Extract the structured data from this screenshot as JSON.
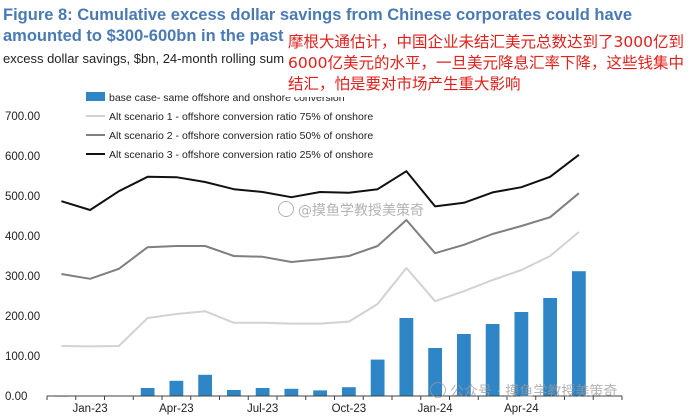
{
  "header": {
    "title": "Figure 8: Cumulative excess dollar savings from Chinese corporates could have amounted to $300-600bn in the past two years",
    "subtitle": "excess dollar savings, $bn, 24-month rolling sum"
  },
  "annotation": {
    "text": "摩根大通估计，中国企业未结汇美元总数达到了3000亿到6000亿美元的水平，一旦美元降息汇率下降，这些钱集中结汇，怕是要对市场产生重大影响"
  },
  "watermarks": {
    "top": "@摸鱼学教授美策奇",
    "bottom": "公众号 · 摸鱼学教授美策奇"
  },
  "colors": {
    "bar": "#2f86c6",
    "alt1": "#d2d2d2",
    "alt2": "#7f7f7f",
    "alt3": "#111111",
    "axis": "#404040",
    "title": "#4a7ab5",
    "annotation": "#e0201b"
  },
  "chart_data": {
    "type": "bar",
    "title": "Figure 8: Cumulative excess dollar savings from Chinese corporates could have amounted to $300-600bn in the past two years",
    "subtitle": "excess dollar savings, $bn, 24-month rolling sum",
    "ylim": [
      0,
      700
    ],
    "yticks": [
      "0.00",
      "100.00",
      "200.00",
      "300.00",
      "400.00",
      "500.00",
      "600.00",
      "700.00"
    ],
    "yticks_values": [
      0,
      100,
      200,
      300,
      400,
      500,
      600,
      700
    ],
    "xtick_labels": [
      {
        "index": 1,
        "label": "Jan-23"
      },
      {
        "index": 4,
        "label": "Apr-23"
      },
      {
        "index": 7,
        "label": "Jul-23"
      },
      {
        "index": 10,
        "label": "Oct-23"
      },
      {
        "index": 13,
        "label": "Jan-24"
      },
      {
        "index": 16,
        "label": "Apr-24"
      }
    ],
    "categories": [
      "Dec-22",
      "Jan-23",
      "Feb-23",
      "Mar-23",
      "Apr-23",
      "May-23",
      "Jun-23",
      "Jul-23",
      "Aug-23",
      "Sep-23",
      "Oct-23",
      "Nov-23",
      "Dec-23",
      "Jan-24",
      "Feb-24",
      "Mar-24",
      "Apr-24",
      "May-24",
      "Jun-24",
      "Jul-24"
    ],
    "legend_position": "top-left",
    "grid": false,
    "series": [
      {
        "name": "base case- same offshore and onshore conversion",
        "kind": "bar",
        "color": "#2f86c6",
        "values": [
          0,
          1,
          1,
          20,
          38,
          53,
          15,
          20,
          18,
          14,
          22,
          91,
          195,
          120,
          155,
          180,
          210,
          245,
          312,
          null
        ]
      },
      {
        "name": "Alt scenario 1 - offshore conversion ratio 75% of onshore",
        "kind": "line",
        "color": "#d2d2d2",
        "values": [
          125,
          124,
          125,
          195,
          205,
          212,
          183,
          183,
          181,
          181,
          186,
          230,
          320,
          237,
          262,
          290,
          315,
          350,
          410,
          null
        ]
      },
      {
        "name": "Alt scenario 2 - offshore conversion ratio 50% of onshore",
        "kind": "line",
        "color": "#7f7f7f",
        "values": [
          305,
          293,
          318,
          372,
          375,
          375,
          350,
          348,
          335,
          342,
          350,
          375,
          440,
          357,
          378,
          405,
          425,
          447,
          507,
          null
        ]
      },
      {
        "name": "Alt scenario 3 - offshore conversion ratio 25% of onshore",
        "kind": "line",
        "color": "#111111",
        "values": [
          487,
          465,
          512,
          548,
          547,
          535,
          517,
          510,
          497,
          510,
          508,
          517,
          562,
          474,
          483,
          509,
          522,
          548,
          603,
          null
        ]
      }
    ]
  }
}
